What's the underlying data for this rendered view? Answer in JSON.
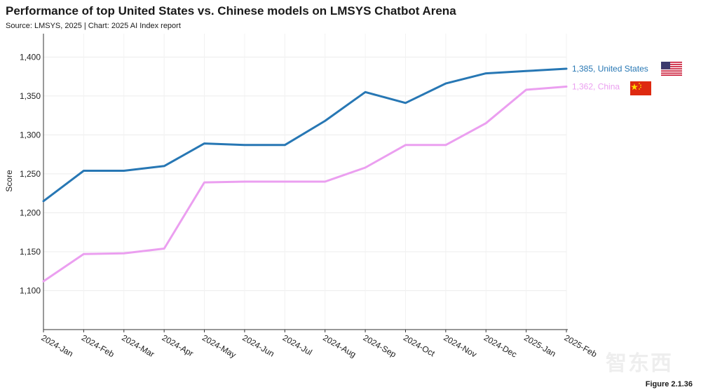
{
  "title": "Performance of top United States vs. Chinese models on LMSYS Chatbot Arena",
  "subtitle": "Source: LMSYS, 2025 | Chart: 2025 AI Index report",
  "figure_label": "Figure 2.1.36",
  "watermark": "智东西",
  "colors": {
    "us": "#2777b4",
    "china": "#eb9ff0"
  },
  "chart_data": {
    "type": "line",
    "title": "Performance of top United States vs. Chinese models on LMSYS Chatbot Arena",
    "xlabel": "",
    "ylabel": "Score",
    "ylim": [
      1050,
      1430
    ],
    "yticks": [
      1100,
      1150,
      1200,
      1250,
      1300,
      1350,
      1400
    ],
    "ytick_labels": [
      "1,100",
      "1,150",
      "1,200",
      "1,250",
      "1,300",
      "1,350",
      "1,400"
    ],
    "categories": [
      "2024-Jan",
      "2024-Feb",
      "2024-Mar",
      "2024-Apr",
      "2024-May",
      "2024-Jun",
      "2024-Jul",
      "2024-Aug",
      "2024-Sep",
      "2024-Oct",
      "2024-Nov",
      "2024-Dec",
      "2025-Jan",
      "2025-Feb"
    ],
    "series": [
      {
        "name": "United States",
        "end_label": "1,385, United States",
        "color": "#2777b4",
        "values": [
          1215,
          1254,
          1254,
          1260,
          1289,
          1287,
          1287,
          1318,
          1355,
          1341,
          1366,
          1379,
          1382,
          1385
        ]
      },
      {
        "name": "China",
        "end_label": "1,362, China",
        "color": "#eb9ff0",
        "values": [
          1112,
          1147,
          1148,
          1154,
          1239,
          1240,
          1240,
          1240,
          1258,
          1287,
          1287,
          1315,
          1358,
          1362
        ]
      }
    ]
  }
}
